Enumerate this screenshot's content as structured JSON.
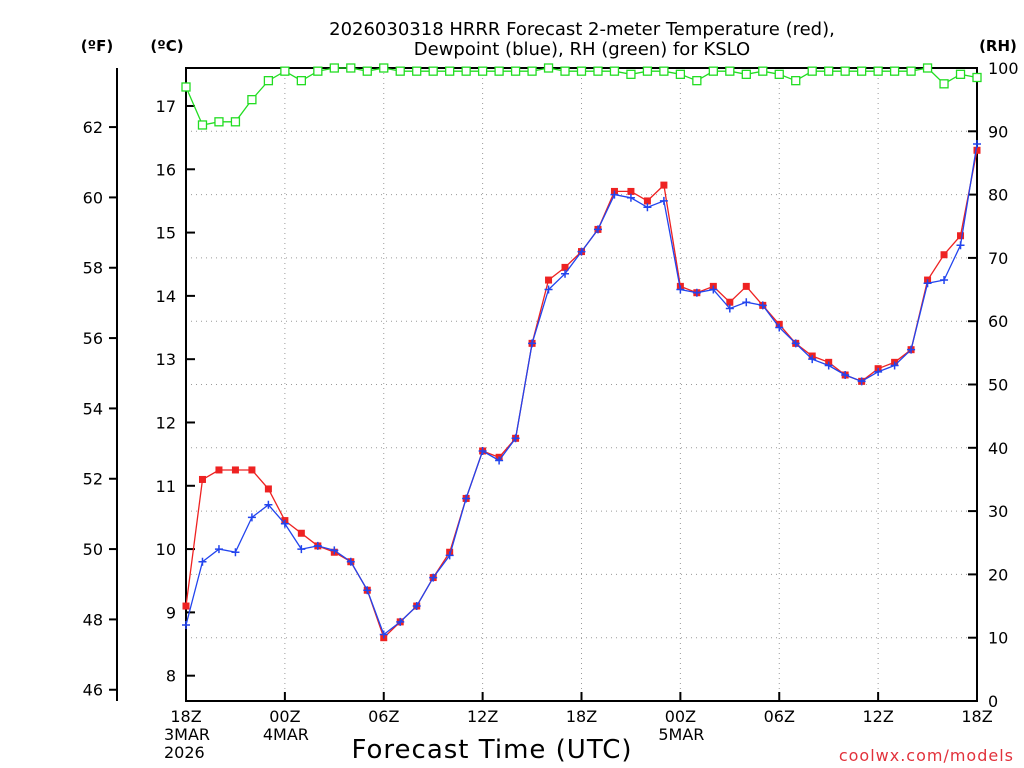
{
  "chart_data": {
    "type": "line",
    "title": [
      "2026030318 HRRR Forecast 2-meter Temperature (red),",
      "Dewpoint (blue), RH (green) for KSLO"
    ],
    "xlabel": "Forecast Time (UTC)",
    "credit": "coolwx.com/models",
    "units": {
      "fahrenheit": "(ºF)",
      "celsius": "(ºC)",
      "rh": "(RH)"
    },
    "x_range": [
      0,
      48
    ],
    "x_ticks": [
      {
        "x": 0,
        "lines": [
          "18Z",
          "3MAR",
          "2026"
        ]
      },
      {
        "x": 6,
        "lines": [
          "00Z",
          "4MAR"
        ]
      },
      {
        "x": 12,
        "lines": [
          "06Z"
        ]
      },
      {
        "x": 18,
        "lines": [
          "12Z"
        ]
      },
      {
        "x": 24,
        "lines": [
          "18Z"
        ]
      },
      {
        "x": 30,
        "lines": [
          "00Z",
          "5MAR"
        ]
      },
      {
        "x": 36,
        "lines": [
          "06Z"
        ]
      },
      {
        "x": 42,
        "lines": [
          "12Z"
        ]
      },
      {
        "x": 48,
        "lines": [
          "18Z"
        ]
      }
    ],
    "celsius_range": [
      7.6,
      17.6
    ],
    "celsius_ticks": [
      8,
      9,
      10,
      11,
      12,
      13,
      14,
      15,
      16,
      17
    ],
    "fahrenheit_ticks": [
      46,
      48,
      50,
      52,
      54,
      56,
      58,
      60,
      62
    ],
    "rh_range": [
      0,
      100
    ],
    "rh_ticks": [
      0,
      10,
      20,
      30,
      40,
      50,
      60,
      70,
      80,
      90,
      100
    ],
    "x": [
      0,
      1,
      2,
      3,
      4,
      5,
      6,
      7,
      8,
      9,
      10,
      11,
      12,
      13,
      14,
      15,
      16,
      17,
      18,
      19,
      20,
      21,
      22,
      23,
      24,
      25,
      26,
      27,
      28,
      29,
      30,
      31,
      32,
      33,
      34,
      35,
      36,
      37,
      38,
      39,
      40,
      41,
      42,
      43,
      44,
      45,
      46,
      47,
      48
    ],
    "series": [
      {
        "name": "Temperature",
        "unit": "C",
        "color": "#ee2222",
        "values": [
          9.1,
          11.1,
          11.25,
          11.25,
          11.25,
          10.95,
          10.45,
          10.25,
          10.05,
          9.95,
          9.8,
          9.35,
          8.6,
          8.85,
          9.1,
          9.55,
          9.95,
          10.8,
          11.55,
          11.45,
          11.75,
          13.25,
          14.25,
          14.45,
          14.7,
          15.05,
          15.65,
          15.65,
          15.5,
          15.75,
          14.15,
          14.05,
          14.15,
          13.9,
          14.15,
          13.85,
          13.55,
          13.25,
          13.05,
          12.95,
          12.75,
          12.65,
          12.85,
          12.95,
          13.15,
          14.25,
          14.65,
          14.95,
          16.3
        ]
      },
      {
        "name": "Dewpoint",
        "unit": "C",
        "color": "#2244ee",
        "values": [
          8.8,
          9.8,
          10.0,
          9.95,
          10.5,
          10.7,
          10.4,
          10.0,
          10.05,
          9.98,
          9.8,
          9.35,
          8.65,
          8.85,
          9.1,
          9.55,
          9.9,
          10.8,
          11.55,
          11.4,
          11.75,
          13.25,
          14.1,
          14.35,
          14.7,
          15.05,
          15.6,
          15.55,
          15.4,
          15.5,
          14.1,
          14.05,
          14.1,
          13.8,
          13.9,
          13.85,
          13.5,
          13.25,
          13.0,
          12.9,
          12.75,
          12.65,
          12.8,
          12.9,
          13.15,
          14.2,
          14.25,
          14.8,
          16.4
        ]
      },
      {
        "name": "RH",
        "unit": "%",
        "color": "#22dd22",
        "values": [
          97,
          91,
          91.5,
          91.5,
          95,
          98,
          99.5,
          98,
          99.5,
          100,
          100,
          99.5,
          100,
          99.5,
          99.5,
          99.5,
          99.5,
          99.5,
          99.5,
          99.5,
          99.5,
          99.5,
          100,
          99.5,
          99.5,
          99.5,
          99.5,
          99,
          99.5,
          99.5,
          99,
          98,
          99.5,
          99.5,
          99,
          99.5,
          99,
          98,
          99.5,
          99.5,
          99.5,
          99.5,
          99.5,
          99.5,
          99.5,
          100,
          97.5,
          99,
          98.5
        ]
      }
    ]
  }
}
